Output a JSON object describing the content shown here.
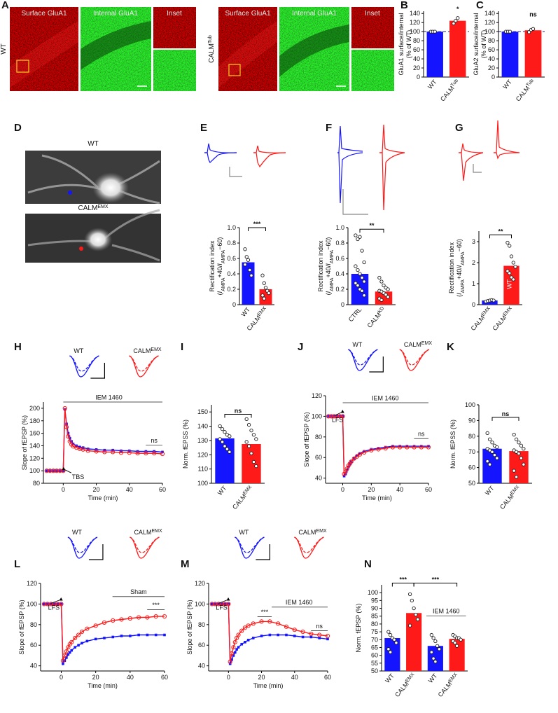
{
  "image_panels": [
    {
      "panel": "A",
      "rows": [
        {
          "condition": "WT",
          "columns": [
            "Surface GluA1",
            "Internal GluA1",
            "Inset"
          ]
        },
        {
          "condition": [
            "CALM",
            {
              "text": "Tub",
              "sup": true
            }
          ],
          "columns": [
            "Surface GluA1",
            "Internal GluA1",
            "Inset"
          ]
        }
      ]
    },
    {
      "panel": "D",
      "labels": [
        "WT",
        [
          "CALM",
          {
            "text": "EMX",
            "sup": true
          }
        ]
      ]
    }
  ],
  "chart_data": [
    {
      "type": "bar",
      "panel": "B",
      "ylabel": [
        [
          "GluA1 surface/internal"
        ],
        [
          "(% of WT)"
        ]
      ],
      "categories": [
        [
          "WT"
        ],
        [
          "CALM",
          {
            "text": "Tub",
            "sup": true
          }
        ]
      ],
      "values": [
        100,
        124
      ],
      "colors": [
        "#1414ff",
        "#ff1a1a"
      ],
      "points": [
        [
          100,
          100,
          100
        ],
        [
          118,
          124,
          130
        ]
      ],
      "ylim": [
        0,
        145
      ],
      "yticks": [
        0,
        20,
        40,
        60,
        80,
        100,
        120,
        140
      ],
      "reference_line": 100,
      "significance": [
        "*"
      ]
    },
    {
      "type": "bar",
      "panel": "C",
      "ylabel": [
        [
          "GluA2 surface/internal"
        ],
        [
          "(% of WT)"
        ]
      ],
      "categories": [
        [
          "WT"
        ],
        [
          "CALM",
          {
            "text": "Tub",
            "sup": true
          }
        ]
      ],
      "values": [
        100,
        103
      ],
      "colors": [
        "#1414ff",
        "#ff1a1a"
      ],
      "points": [
        [
          100,
          100,
          100
        ],
        [
          99,
          104,
          106
        ]
      ],
      "ylim": [
        0,
        145
      ],
      "yticks": [
        0,
        20,
        40,
        60,
        80,
        100,
        120,
        140
      ],
      "reference_line": 100,
      "significance": [
        "ns"
      ]
    },
    {
      "type": "bar",
      "panel": "E",
      "ylabel": [
        [
          "Rectification index"
        ],
        [
          "(",
          {
            "text": "I",
            "italic": true
          },
          {
            "text": "AMPA",
            "sub": true
          },
          "+40/",
          {
            "text": "I",
            "italic": true
          },
          {
            "text": "AMPA",
            "sub": true
          },
          "−60)"
        ]
      ],
      "categories": [
        [
          "WT"
        ],
        [
          "CALM",
          {
            "text": "EMX",
            "sup": true
          }
        ]
      ],
      "values": [
        0.55,
        0.2
      ],
      "colors": [
        "#1414ff",
        "#ff1a1a"
      ],
      "points": [
        [
          0.72,
          0.62,
          0.58,
          0.45,
          0.38,
          0.52
        ],
        [
          0.38,
          0.28,
          0.22,
          0.18,
          0.15,
          0.12,
          0.08
        ]
      ],
      "ylim": [
        0,
        1
      ],
      "yticks": [
        0,
        0.2,
        0.4,
        0.6,
        0.8,
        {
          "value": 1,
          "label": "1.0"
        }
      ],
      "significance": [
        "***"
      ]
    },
    {
      "type": "bar",
      "panel": "F",
      "ylabel": [
        [
          "Rectification index"
        ],
        [
          "(",
          {
            "text": "I",
            "italic": true
          },
          {
            "text": "AMPA",
            "sub": true
          },
          "+40/",
          {
            "text": "I",
            "italic": true
          },
          {
            "text": "AMPA",
            "sub": true
          },
          "−60)"
        ]
      ],
      "categories": [
        [
          "CTRL"
        ],
        [
          "CALM",
          {
            "text": "KD",
            "sup": true
          }
        ]
      ],
      "values": [
        0.4,
        0.17
      ],
      "colors": [
        "#1414ff",
        "#ff1a1a"
      ],
      "points": [
        [
          0.9,
          0.85,
          0.88,
          0.7,
          0.55,
          0.5,
          0.45,
          0.4,
          0.35,
          0.3,
          0.28,
          0.25,
          0.2,
          0.18,
          0.12
        ],
        [
          0.35,
          0.3,
          0.25,
          0.22,
          0.2,
          0.18,
          0.17,
          0.15,
          0.13,
          0.1,
          0.08,
          0.06
        ]
      ],
      "ylim": [
        0,
        1
      ],
      "yticks": [
        0,
        0.2,
        0.4,
        0.6,
        0.8,
        {
          "value": 1,
          "label": "1.0"
        }
      ],
      "significance": [
        "**"
      ]
    },
    {
      "type": "bar",
      "panel": "G",
      "ylabel": [
        [
          "Rectification index"
        ],
        [
          "(",
          {
            "text": "I",
            "italic": true
          },
          {
            "text": "AMPA",
            "sub": true
          },
          "+40/",
          {
            "text": "I",
            "italic": true
          },
          {
            "text": "AMPA",
            "sub": true
          },
          "−60)"
        ]
      ],
      "categories": [
        [
          "CALM",
          {
            "text": "EMX",
            "sup": true
          }
        ],
        [
          "CALM",
          {
            "text": "EMX",
            "sup": true
          }
        ]
      ],
      "values": [
        0.2,
        1.85
      ],
      "colors": [
        "#1414ff",
        "#ff1a1a"
      ],
      "points": [
        [
          0.15,
          0.18,
          0.2,
          0.22,
          0.2
        ],
        [
          2.95,
          2.8,
          2.3,
          2.0,
          1.8,
          1.6,
          1.5,
          1.3,
          1.2
        ]
      ],
      "ylim": [
        0,
        3.5
      ],
      "yticks": [
        0,
        1,
        2,
        3
      ],
      "significance": [
        "**"
      ],
      "annotations": [
        "WT"
      ]
    },
    {
      "type": "line",
      "panel": "H",
      "ylabel": [
        [
          "Slope of fEPSP (%)"
        ]
      ],
      "xlabel": "Time (min)",
      "x": [
        -10,
        -8,
        -6,
        -4,
        -2,
        0,
        1,
        2,
        3,
        4,
        5,
        6,
        8,
        10,
        12,
        15,
        20,
        25,
        30,
        35,
        40,
        45,
        50,
        55,
        60
      ],
      "series": [
        {
          "name": [
            "WT"
          ],
          "color": "#1414ff",
          "values": [
            100,
            100,
            100,
            100,
            100,
            100,
            198,
            175,
            160,
            152,
            147,
            143,
            140,
            138,
            137,
            135,
            134,
            133,
            133,
            132,
            132,
            131,
            131,
            131,
            130
          ]
        },
        {
          "name": [
            "CALM",
            {
              "text": "EMX",
              "sup": true
            }
          ],
          "color": "#ff1a1a",
          "values": [
            100,
            100,
            100,
            100,
            100,
            100,
            200,
            170,
            155,
            147,
            142,
            139,
            137,
            135,
            134,
            132,
            131,
            130,
            130,
            129,
            129,
            128,
            128,
            128,
            127
          ]
        }
      ],
      "xlim": [
        -12,
        60
      ],
      "xticks": [
        0,
        20,
        40,
        60
      ],
      "ylim": [
        80,
        210
      ],
      "yticks": [
        80,
        100,
        120,
        140,
        160,
        180,
        200
      ],
      "annotations": [
        "IEM 1460",
        "TBS",
        "ns"
      ]
    },
    {
      "type": "bar",
      "panel": "I",
      "ylabel": [
        [
          "Norm. fEPSS (%)"
        ]
      ],
      "categories": [
        [
          "WT"
        ],
        [
          "CALM",
          {
            "text": "EMX",
            "sup": true
          }
        ]
      ],
      "values": [
        131.5,
        127.5
      ],
      "colors": [
        "#1414ff",
        "#ff1a1a"
      ],
      "points": [
        [
          140,
          138,
          136,
          134,
          133,
          131,
          129,
          126,
          124,
          122
        ],
        [
          145,
          141,
          137,
          134,
          131,
          129,
          126,
          121,
          115,
          112
        ]
      ],
      "ylim": [
        100,
        155
      ],
      "yticks": [
        100,
        110,
        120,
        130,
        140,
        150
      ],
      "significance": [
        "ns"
      ]
    },
    {
      "type": "line",
      "panel": "J",
      "ylabel": [
        [
          "Slope of fEPSP (%)"
        ]
      ],
      "xlabel": "Time (min)",
      "x": [
        -10,
        -8,
        -6,
        -4,
        -2,
        0,
        1,
        2,
        3,
        4,
        5,
        6,
        8,
        10,
        12,
        15,
        20,
        25,
        30,
        35,
        40,
        45,
        50,
        55,
        60
      ],
      "series": [
        {
          "name": [
            "WT"
          ],
          "color": "#1414ff",
          "values": [
            100,
            100,
            100,
            100,
            100,
            100,
            42,
            44,
            48,
            51,
            54,
            56,
            59,
            62,
            64,
            66,
            68,
            69,
            70,
            71,
            71,
            71,
            71,
            71,
            71
          ]
        },
        {
          "name": [
            "CALM",
            {
              "text": "EMX",
              "sup": true
            }
          ],
          "color": "#ff1a1a",
          "values": [
            100,
            100,
            100,
            100,
            100,
            100,
            44,
            46,
            49,
            52,
            54,
            56,
            59,
            61,
            63,
            65,
            67,
            68,
            69,
            70,
            70,
            70,
            70,
            70,
            70
          ]
        }
      ],
      "xlim": [
        -12,
        60
      ],
      "xticks": [
        0,
        20,
        40,
        60
      ],
      "ylim": [
        35,
        120
      ],
      "yticks": [
        40,
        60,
        80,
        100,
        120
      ],
      "annotations": [
        "IEM 1460",
        "LFS",
        "ns"
      ]
    },
    {
      "type": "bar",
      "panel": "K",
      "ylabel": [
        [
          "Norm. fEPSS (%)"
        ]
      ],
      "categories": [
        [
          "WT"
        ],
        [
          "CALM",
          {
            "text": "EMX",
            "sup": true
          }
        ]
      ],
      "values": [
        72,
        70.5
      ],
      "colors": [
        "#1414ff",
        "#ff1a1a"
      ],
      "points": [
        [
          82,
          78,
          76,
          74,
          73,
          72,
          71,
          70,
          68,
          66,
          64,
          62
        ],
        [
          81,
          78,
          76,
          74,
          72,
          71,
          70,
          69,
          66,
          62,
          58,
          54
        ]
      ],
      "ylim": [
        50,
        100
      ],
      "yticks": [
        50,
        60,
        70,
        80,
        90,
        100
      ],
      "significance": [
        "ns"
      ]
    },
    {
      "type": "line",
      "panel": "L",
      "ylabel": [
        [
          "Slope of fEPSP (%)"
        ]
      ],
      "xlabel": "Time (min)",
      "x": [
        -10,
        -8,
        -6,
        -4,
        -2,
        0,
        1,
        2,
        3,
        4,
        5,
        6,
        8,
        10,
        12,
        15,
        20,
        25,
        30,
        35,
        40,
        45,
        50,
        55,
        60
      ],
      "series": [
        {
          "name": [
            "WT"
          ],
          "color": "#1414ff",
          "values": [
            100,
            100,
            100,
            100,
            100,
            100,
            42,
            45,
            48,
            51,
            53,
            55,
            58,
            60,
            62,
            64,
            66,
            67,
            68,
            69,
            69,
            70,
            70,
            70,
            70
          ]
        },
        {
          "name": [
            "CALM",
            {
              "text": "EMX",
              "sup": true
            }
          ],
          "color": "#ff1a1a",
          "values": [
            100,
            100,
            100,
            100,
            100,
            100,
            45,
            50,
            54,
            58,
            61,
            63,
            67,
            70,
            73,
            76,
            79,
            82,
            84,
            85,
            86,
            87,
            87,
            88,
            88
          ]
        }
      ],
      "xlim": [
        -12,
        60
      ],
      "xticks": [
        0,
        20,
        40,
        60
      ],
      "ylim": [
        35,
        120
      ],
      "yticks": [
        40,
        60,
        80,
        100,
        120
      ],
      "annotations": [
        "Sham",
        "LFS",
        "***"
      ]
    },
    {
      "type": "line",
      "panel": "M",
      "ylabel": [
        [
          "Slope of fEPSP (%)"
        ]
      ],
      "xlabel": "Time (min)",
      "x": [
        -10,
        -8,
        -6,
        -4,
        -2,
        0,
        1,
        2,
        3,
        4,
        5,
        6,
        8,
        10,
        12,
        15,
        20,
        25,
        30,
        35,
        40,
        45,
        50,
        55,
        60
      ],
      "series": [
        {
          "name": [
            "WT"
          ],
          "color": "#1414ff",
          "values": [
            100,
            100,
            100,
            100,
            100,
            100,
            42,
            46,
            50,
            53,
            56,
            58,
            61,
            63,
            65,
            67,
            69,
            70,
            70,
            70,
            69,
            68,
            68,
            67,
            66
          ]
        },
        {
          "name": [
            "CALM",
            {
              "text": "EMX",
              "sup": true
            }
          ],
          "color": "#ff1a1a",
          "values": [
            100,
            100,
            100,
            100,
            100,
            100,
            44,
            52,
            58,
            63,
            67,
            70,
            74,
            77,
            79,
            81,
            83,
            83,
            81,
            78,
            75,
            73,
            71,
            70,
            69
          ]
        }
      ],
      "xlim": [
        -12,
        60
      ],
      "xticks": [
        0,
        20,
        40,
        60
      ],
      "ylim": [
        35,
        120
      ],
      "yticks": [
        40,
        60,
        80,
        100,
        120
      ],
      "annotations": [
        "***",
        "IEM 1460",
        "ns",
        "LFS"
      ]
    },
    {
      "type": "bar",
      "panel": "N",
      "ylabel": [
        [
          "Norm. fEPSP (%)"
        ]
      ],
      "categories": [
        [
          "WT"
        ],
        [
          "CALM",
          {
            "text": "EMX",
            "sup": true
          }
        ],
        [
          "WT"
        ],
        [
          "CALM",
          {
            "text": "EMX",
            "sup": true
          }
        ]
      ],
      "values": [
        71,
        87,
        66,
        70.5
      ],
      "colors": [
        "#1414ff",
        "#ff1a1a",
        "#1414ff",
        "#ff1a1a"
      ],
      "points": [
        [
          75,
          73,
          71,
          70,
          68,
          64,
          62
        ],
        [
          99,
          95,
          90,
          86,
          83,
          79
        ],
        [
          73,
          71,
          69,
          66,
          64,
          62,
          58,
          56
        ],
        [
          73,
          72,
          71,
          71,
          70,
          69,
          68,
          66
        ]
      ],
      "ylim": [
        50,
        105
      ],
      "yticks": [
        50,
        55,
        60,
        65,
        70,
        75,
        80,
        85,
        90,
        95,
        100
      ],
      "significance": [
        "***",
        "***"
      ],
      "annotations": [
        "IEM 1460"
      ]
    }
  ]
}
